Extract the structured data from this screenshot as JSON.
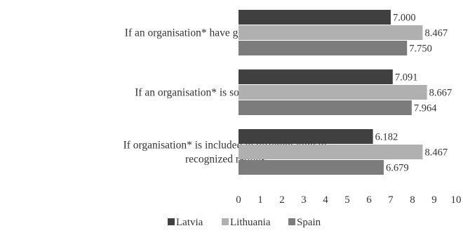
{
  "chart_data": {
    "type": "bar",
    "orientation": "horizontal",
    "categories": [
      [
        "If an organisation* have good employer brand"
      ],
      [
        "If an organisation* is socially responsible"
      ],
      [
        "If organisation* is included in different kind of",
        "recognized ratings"
      ]
    ],
    "series": [
      {
        "name": "Latvia",
        "color": "#404040",
        "values": [
          7.0,
          7.091,
          6.182
        ],
        "labels": [
          "7.000",
          "7.091",
          "6.182"
        ]
      },
      {
        "name": "Lithuania",
        "color": "#b0b0b0",
        "values": [
          8.467,
          8.667,
          8.467
        ],
        "labels": [
          "8.467",
          "8.667",
          "8.467"
        ]
      },
      {
        "name": "Spain",
        "color": "#7c7c7c",
        "values": [
          7.75,
          7.964,
          6.679
        ],
        "labels": [
          "7.750",
          "7.964",
          "6.679"
        ]
      }
    ],
    "xlim": [
      0,
      10
    ],
    "xticks": [
      "0",
      "1",
      "2",
      "3",
      "4",
      "5",
      "6",
      "7",
      "8",
      "9",
      "10"
    ],
    "grid": false,
    "legend_position": "bottom"
  }
}
